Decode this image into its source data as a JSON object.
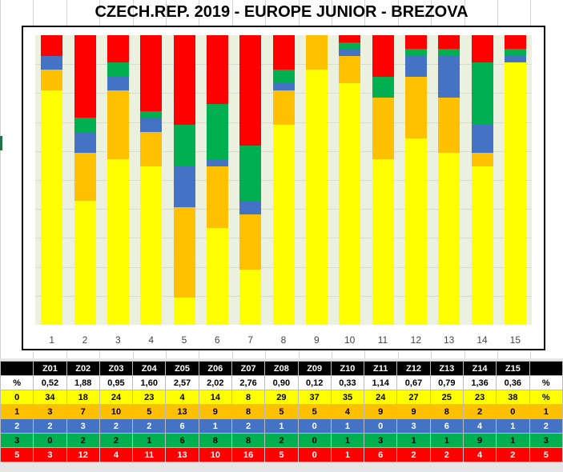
{
  "title": "CZECH.REP. 2019 - EUROPE JUNIOR - BREZOVA",
  "colors": {
    "0": "#ffff00",
    "1": "#ffc000",
    "2": "#4472c4",
    "3": "#00b050",
    "5": "#ff0000",
    "plot_bg": "#ebf1de"
  },
  "chart_data": {
    "type": "bar",
    "stacked": true,
    "percent": true,
    "title": "CZECH.REP. 2019 - EUROPE JUNIOR - BREZOVA",
    "categories": [
      "1",
      "2",
      "3",
      "4",
      "5",
      "6",
      "7",
      "8",
      "9",
      "10",
      "11",
      "12",
      "13",
      "14",
      "15"
    ],
    "series": [
      {
        "name": "0",
        "values": [
          34,
          18,
          24,
          23,
          4,
          14,
          8,
          29,
          37,
          35,
          24,
          27,
          25,
          23,
          38
        ]
      },
      {
        "name": "1",
        "values": [
          3,
          7,
          10,
          5,
          13,
          9,
          8,
          5,
          5,
          4,
          9,
          9,
          8,
          2,
          0
        ]
      },
      {
        "name": "2",
        "values": [
          2,
          3,
          2,
          2,
          6,
          1,
          2,
          1,
          0,
          1,
          0,
          3,
          6,
          4,
          1
        ]
      },
      {
        "name": "3",
        "values": [
          0,
          2,
          2,
          1,
          6,
          8,
          8,
          2,
          0,
          1,
          3,
          1,
          1,
          9,
          1
        ]
      },
      {
        "name": "5",
        "values": [
          3,
          12,
          4,
          11,
          13,
          10,
          16,
          5,
          0,
          1,
          6,
          2,
          2,
          4,
          2
        ]
      }
    ],
    "grid": true,
    "legend": "none"
  },
  "table": {
    "header": [
      "",
      "Z01",
      "Z02",
      "Z03",
      "Z04",
      "Z05",
      "Z06",
      "Z07",
      "Z08",
      "Z09",
      "Z10",
      "Z11",
      "Z12",
      "Z13",
      "Z14",
      "Z15",
      ""
    ],
    "rows": [
      {
        "key": "pct",
        "label": "%",
        "cells": [
          "0,52",
          "1,88",
          "0,95",
          "1,60",
          "2,57",
          "2,02",
          "2,76",
          "0,90",
          "0,12",
          "0,33",
          "1,14",
          "0,67",
          "0,79",
          "1,36",
          "0,36"
        ],
        "end": "%"
      },
      {
        "key": "0",
        "label": "0",
        "cells": [
          "34",
          "18",
          "24",
          "23",
          "4",
          "14",
          "8",
          "29",
          "37",
          "35",
          "24",
          "27",
          "25",
          "23",
          "38"
        ],
        "end": "%"
      },
      {
        "key": "1",
        "label": "1",
        "cells": [
          "3",
          "7",
          "10",
          "5",
          "13",
          "9",
          "8",
          "5",
          "5",
          "4",
          "9",
          "9",
          "8",
          "2",
          "0"
        ],
        "end": "1"
      },
      {
        "key": "2",
        "label": "2",
        "cells": [
          "2",
          "3",
          "2",
          "2",
          "6",
          "1",
          "2",
          "1",
          "0",
          "1",
          "0",
          "3",
          "6",
          "4",
          "1"
        ],
        "end": "2"
      },
      {
        "key": "3",
        "label": "3",
        "cells": [
          "0",
          "2",
          "2",
          "1",
          "6",
          "8",
          "8",
          "2",
          "0",
          "1",
          "3",
          "1",
          "1",
          "9",
          "1"
        ],
        "end": "3"
      },
      {
        "key": "5",
        "label": "5",
        "cells": [
          "3",
          "12",
          "4",
          "11",
          "13",
          "10",
          "16",
          "5",
          "0",
          "1",
          "6",
          "2",
          "2",
          "4",
          "2"
        ],
        "end": "5"
      }
    ]
  }
}
